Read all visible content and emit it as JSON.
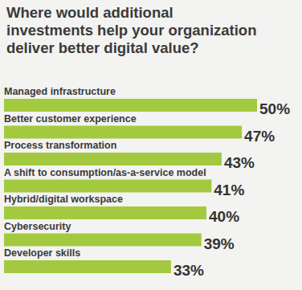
{
  "chart_data": {
    "type": "bar",
    "orientation": "horizontal",
    "title": "Where would additional\ninvestments help your organization\ndeliver better digital value?",
    "categories": [
      "Managed infrastructure",
      "Better customer experience",
      "Process transformation",
      "A shift to consumption/as-a-service model",
      "Hybrid/digital workspace",
      "Cybersecurity",
      "Developer skills"
    ],
    "values": [
      50,
      47,
      43,
      41,
      40,
      39,
      33
    ],
    "value_labels": [
      "50%",
      "47%",
      "43%",
      "41%",
      "40%",
      "39%",
      "33%"
    ],
    "color": "#a3c940",
    "data_labels": true,
    "tick_labels": false,
    "grid": false
  }
}
